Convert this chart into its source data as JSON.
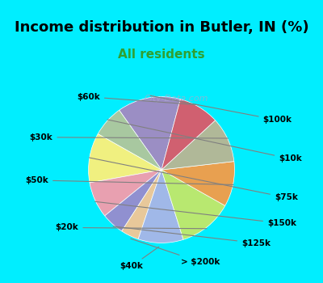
{
  "title": "Income distribution in Butler, IN (%)",
  "subtitle": "All residents",
  "labels": [
    "$100k",
    "$10k",
    "$75k",
    "$150k",
    "$125k",
    "> $200k",
    "$40k",
    "$20k",
    "$50k",
    "$30k",
    "$60k"
  ],
  "sizes": [
    14,
    7,
    11,
    8,
    5,
    4,
    10,
    12,
    10,
    10,
    9
  ],
  "colors": [
    "#9b8ec4",
    "#a8c8a0",
    "#f0f080",
    "#e8a0b0",
    "#9090d0",
    "#e8c89a",
    "#a0b8e8",
    "#b8e870",
    "#e8a050",
    "#b0b898",
    "#d06070"
  ],
  "background_top": "#00eeff",
  "background_chart": "#e0f5ee",
  "title_color": "#000000",
  "subtitle_color": "#30a030",
  "watermark": "City-Data.com",
  "startangle": 75
}
